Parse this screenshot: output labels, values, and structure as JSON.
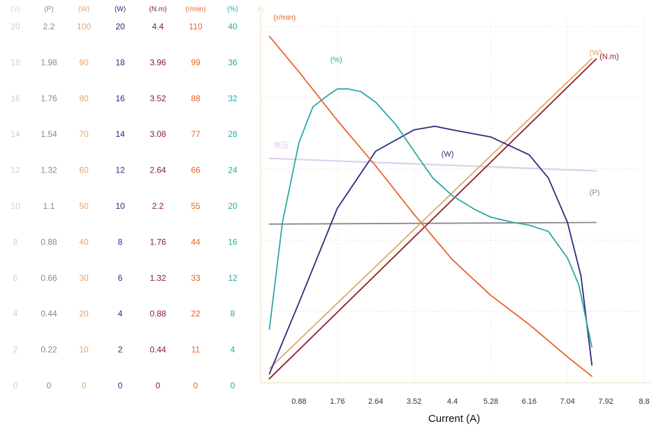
{
  "chart_data": {
    "type": "line",
    "xlabel": "Current (A)",
    "x_ticks": [
      "0.88",
      "1.76",
      "2.64",
      "3.52",
      "4.4",
      "5.28",
      "6.16",
      "7.04",
      "7.92",
      "8.8"
    ],
    "xlim": [
      0,
      8.8
    ],
    "grid": true,
    "scales": [
      {
        "unit": "(V)",
        "color": "#d9c7e3",
        "ticks": [
          "0",
          "2",
          "4",
          "6",
          "8",
          "10",
          "12",
          "14",
          "16",
          "18",
          "20"
        ],
        "max": 20
      },
      {
        "unit": "(P)",
        "color": "#8a8a8a",
        "ticks": [
          "0",
          "0.22",
          "0.44",
          "0.66",
          "0.88",
          "1.1",
          "1.32",
          "1.54",
          "1.76",
          "1.98",
          "2.2"
        ],
        "max": 2.2
      },
      {
        "unit": "(W)",
        "color": "#e2a66c",
        "ticks": [
          "0",
          "10",
          "20",
          "30",
          "40",
          "50",
          "60",
          "70",
          "80",
          "90",
          "100"
        ],
        "max": 100
      },
      {
        "unit": "(W)",
        "color": "#2e2a7e",
        "ticks": [
          "0",
          "2",
          "4",
          "6",
          "8",
          "10",
          "12",
          "14",
          "16",
          "18",
          "20"
        ],
        "max": 20
      },
      {
        "unit": "(N.m)",
        "color": "#8b1e2c",
        "ticks": [
          "0",
          "0.44",
          "0.88",
          "1.32",
          "1.76",
          "2.2",
          "2.64",
          "3.08",
          "3.52",
          "3.96",
          "4.4"
        ],
        "max": 4.4
      },
      {
        "unit": "(r/min)",
        "color": "#ea6427",
        "ticks": [
          "0",
          "11",
          "22",
          "33",
          "44",
          "55",
          "66",
          "77",
          "88",
          "99",
          "110"
        ],
        "max": 110
      },
      {
        "unit": "(%)",
        "color": "#2aa9a3",
        "ticks": [
          "0",
          "4",
          "8",
          "12",
          "16",
          "20",
          "24",
          "28",
          "32",
          "36",
          "40"
        ],
        "max": 40
      }
    ],
    "series": [
      {
        "name": "(r/min)",
        "color": "#ea6427",
        "label_anchor": [
          0.2,
          112
        ],
        "x": [
          0.2,
          0.88,
          1.76,
          2.64,
          3.52,
          4.4,
          5.28,
          6.16,
          7.04,
          7.6
        ],
        "y": [
          107,
          96,
          81,
          67,
          52,
          38,
          27,
          18,
          8,
          2
        ]
      },
      {
        "name": "(%)",
        "color": "#2aa9a3",
        "label_anchor": [
          1.5,
          36
        ],
        "x": [
          0.2,
          0.5,
          0.88,
          1.2,
          1.55,
          1.76,
          2.0,
          2.3,
          2.64,
          3.1,
          3.52,
          3.95,
          4.4,
          4.9,
          5.28,
          5.8,
          6.16,
          6.6,
          7.04,
          7.3,
          7.6
        ],
        "y": [
          6,
          18,
          27,
          31,
          32.3,
          33,
          33,
          32.7,
          31.5,
          29,
          26,
          23,
          21,
          19.5,
          18.6,
          18,
          17.7,
          17,
          14,
          11,
          4
        ]
      },
      {
        "name": "(W)",
        "color": "#2e2a7e",
        "label_anchor": [
          4.05,
          12.7
        ],
        "x": [
          0.2,
          0.88,
          1.76,
          2.64,
          3.52,
          4.0,
          4.4,
          5.28,
          6.16,
          6.6,
          7.04,
          7.35,
          7.6
        ],
        "y": [
          0.5,
          4.5,
          9.8,
          13,
          14.2,
          14.4,
          14.2,
          13.8,
          12.8,
          11.5,
          9,
          6,
          1
        ]
      },
      {
        "name": "(W)",
        "color": "#e2a66c",
        "label_anchor": [
          7.45,
          92
        ],
        "x": [
          0.2,
          7.6
        ],
        "y": [
          4,
          91
        ]
      },
      {
        "name": "(N.m)",
        "color": "#8b1e2c",
        "label_anchor": [
          7.68,
          4.0
        ],
        "x": [
          0.2,
          7.7
        ],
        "y": [
          0.05,
          4.0
        ]
      },
      {
        "name": "电压",
        "color": "#e2cdee",
        "label_anchor": [
          0.2,
          13.2
        ],
        "x": [
          0.2,
          7.7
        ],
        "y": [
          12.6,
          11.9
        ]
      },
      {
        "name": "(P)",
        "color": "#8a8a8a",
        "label_anchor": [
          7.45,
          1.16
        ],
        "x": [
          0.2,
          7.7
        ],
        "y": [
          0.98,
          0.99
        ]
      }
    ]
  }
}
